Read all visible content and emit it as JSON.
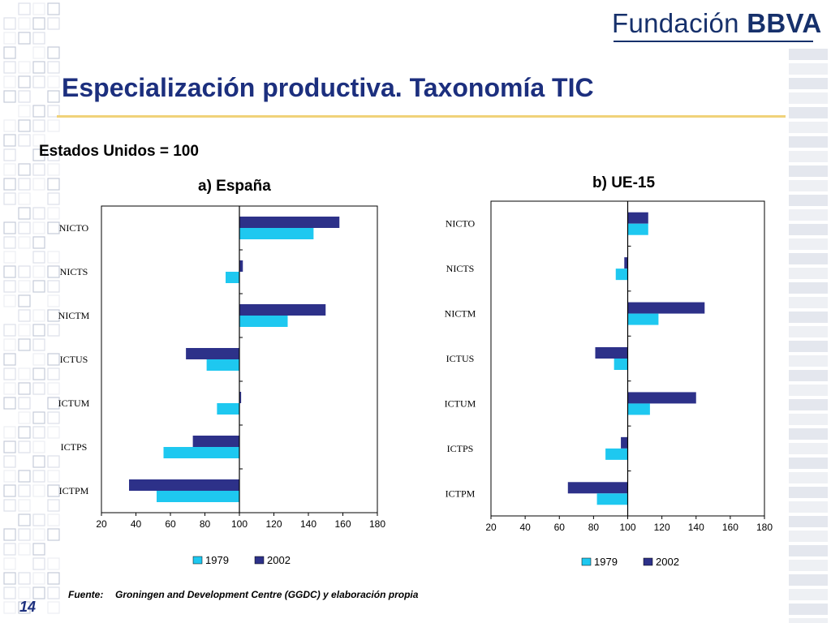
{
  "header": {
    "logo_light": "Fundación",
    "logo_bold": "BBVA",
    "title": "Especialización productiva. Taxonomía TIC"
  },
  "subtitle": "Estados Unidos = 100",
  "chart_data": [
    {
      "type": "bar",
      "orientation": "horizontal",
      "title": "a) España",
      "categories": [
        "NICTO",
        "NICTS",
        "NICTM",
        "ICTUS",
        "ICTUM",
        "ICTPS",
        "ICTPM"
      ],
      "series": [
        {
          "name": "1979",
          "values": [
            143,
            92,
            128,
            81,
            87,
            56,
            52
          ],
          "color": "#1ec8f0"
        },
        {
          "name": "2002",
          "values": [
            158,
            102,
            150,
            69,
            101,
            73,
            36
          ],
          "color": "#2d3189"
        }
      ],
      "xlim": [
        20,
        180
      ],
      "xticks": [
        20,
        40,
        60,
        80,
        100,
        120,
        140,
        160,
        180
      ],
      "baseline": 100,
      "legend": "bottom"
    },
    {
      "type": "bar",
      "orientation": "horizontal",
      "title": "b) UE-15",
      "categories": [
        "NICTO",
        "NICTS",
        "NICTM",
        "ICTUS",
        "ICTUM",
        "ICTPS",
        "ICTPM"
      ],
      "series": [
        {
          "name": "1979",
          "values": [
            112,
            93,
            118,
            92,
            113,
            87,
            82
          ],
          "color": "#1ec8f0"
        },
        {
          "name": "2002",
          "values": [
            112,
            98,
            145,
            81,
            140,
            96,
            65
          ],
          "color": "#2d3189"
        }
      ],
      "xlim": [
        20,
        180
      ],
      "xticks": [
        20,
        40,
        60,
        80,
        100,
        120,
        140,
        160,
        180
      ],
      "baseline": 100,
      "legend": "bottom"
    }
  ],
  "footnote": {
    "label": "Fuente:",
    "text": "Groningen and Development Centre (GGDC) y elaboración propia"
  },
  "page_number": "14"
}
